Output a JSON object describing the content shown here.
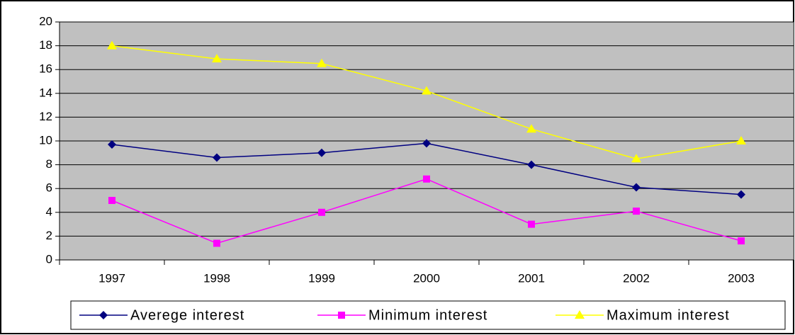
{
  "chart_data": {
    "type": "line",
    "categories": [
      "1997",
      "1998",
      "1999",
      "2000",
      "2001",
      "2002",
      "2003"
    ],
    "series": [
      {
        "name": "Averege interest",
        "color": "#000080",
        "marker": "diamond",
        "values": [
          9.7,
          8.6,
          9.0,
          9.8,
          8.0,
          6.1,
          5.5
        ]
      },
      {
        "name": "Minimum interest",
        "color": "#ff00ff",
        "marker": "square",
        "values": [
          5.0,
          1.4,
          4.0,
          6.8,
          3.0,
          4.1,
          1.6
        ]
      },
      {
        "name": "Maximum interest",
        "color": "#ffff00",
        "marker": "triangle",
        "values": [
          18.0,
          16.9,
          16.5,
          14.2,
          11.0,
          8.5,
          10.0
        ]
      }
    ],
    "ylim": [
      0,
      20
    ],
    "yticks": [
      0,
      2,
      4,
      6,
      8,
      10,
      12,
      14,
      16,
      18,
      20
    ],
    "grid": true,
    "legend": "bottom",
    "plot_background": "#c0c0c0"
  }
}
